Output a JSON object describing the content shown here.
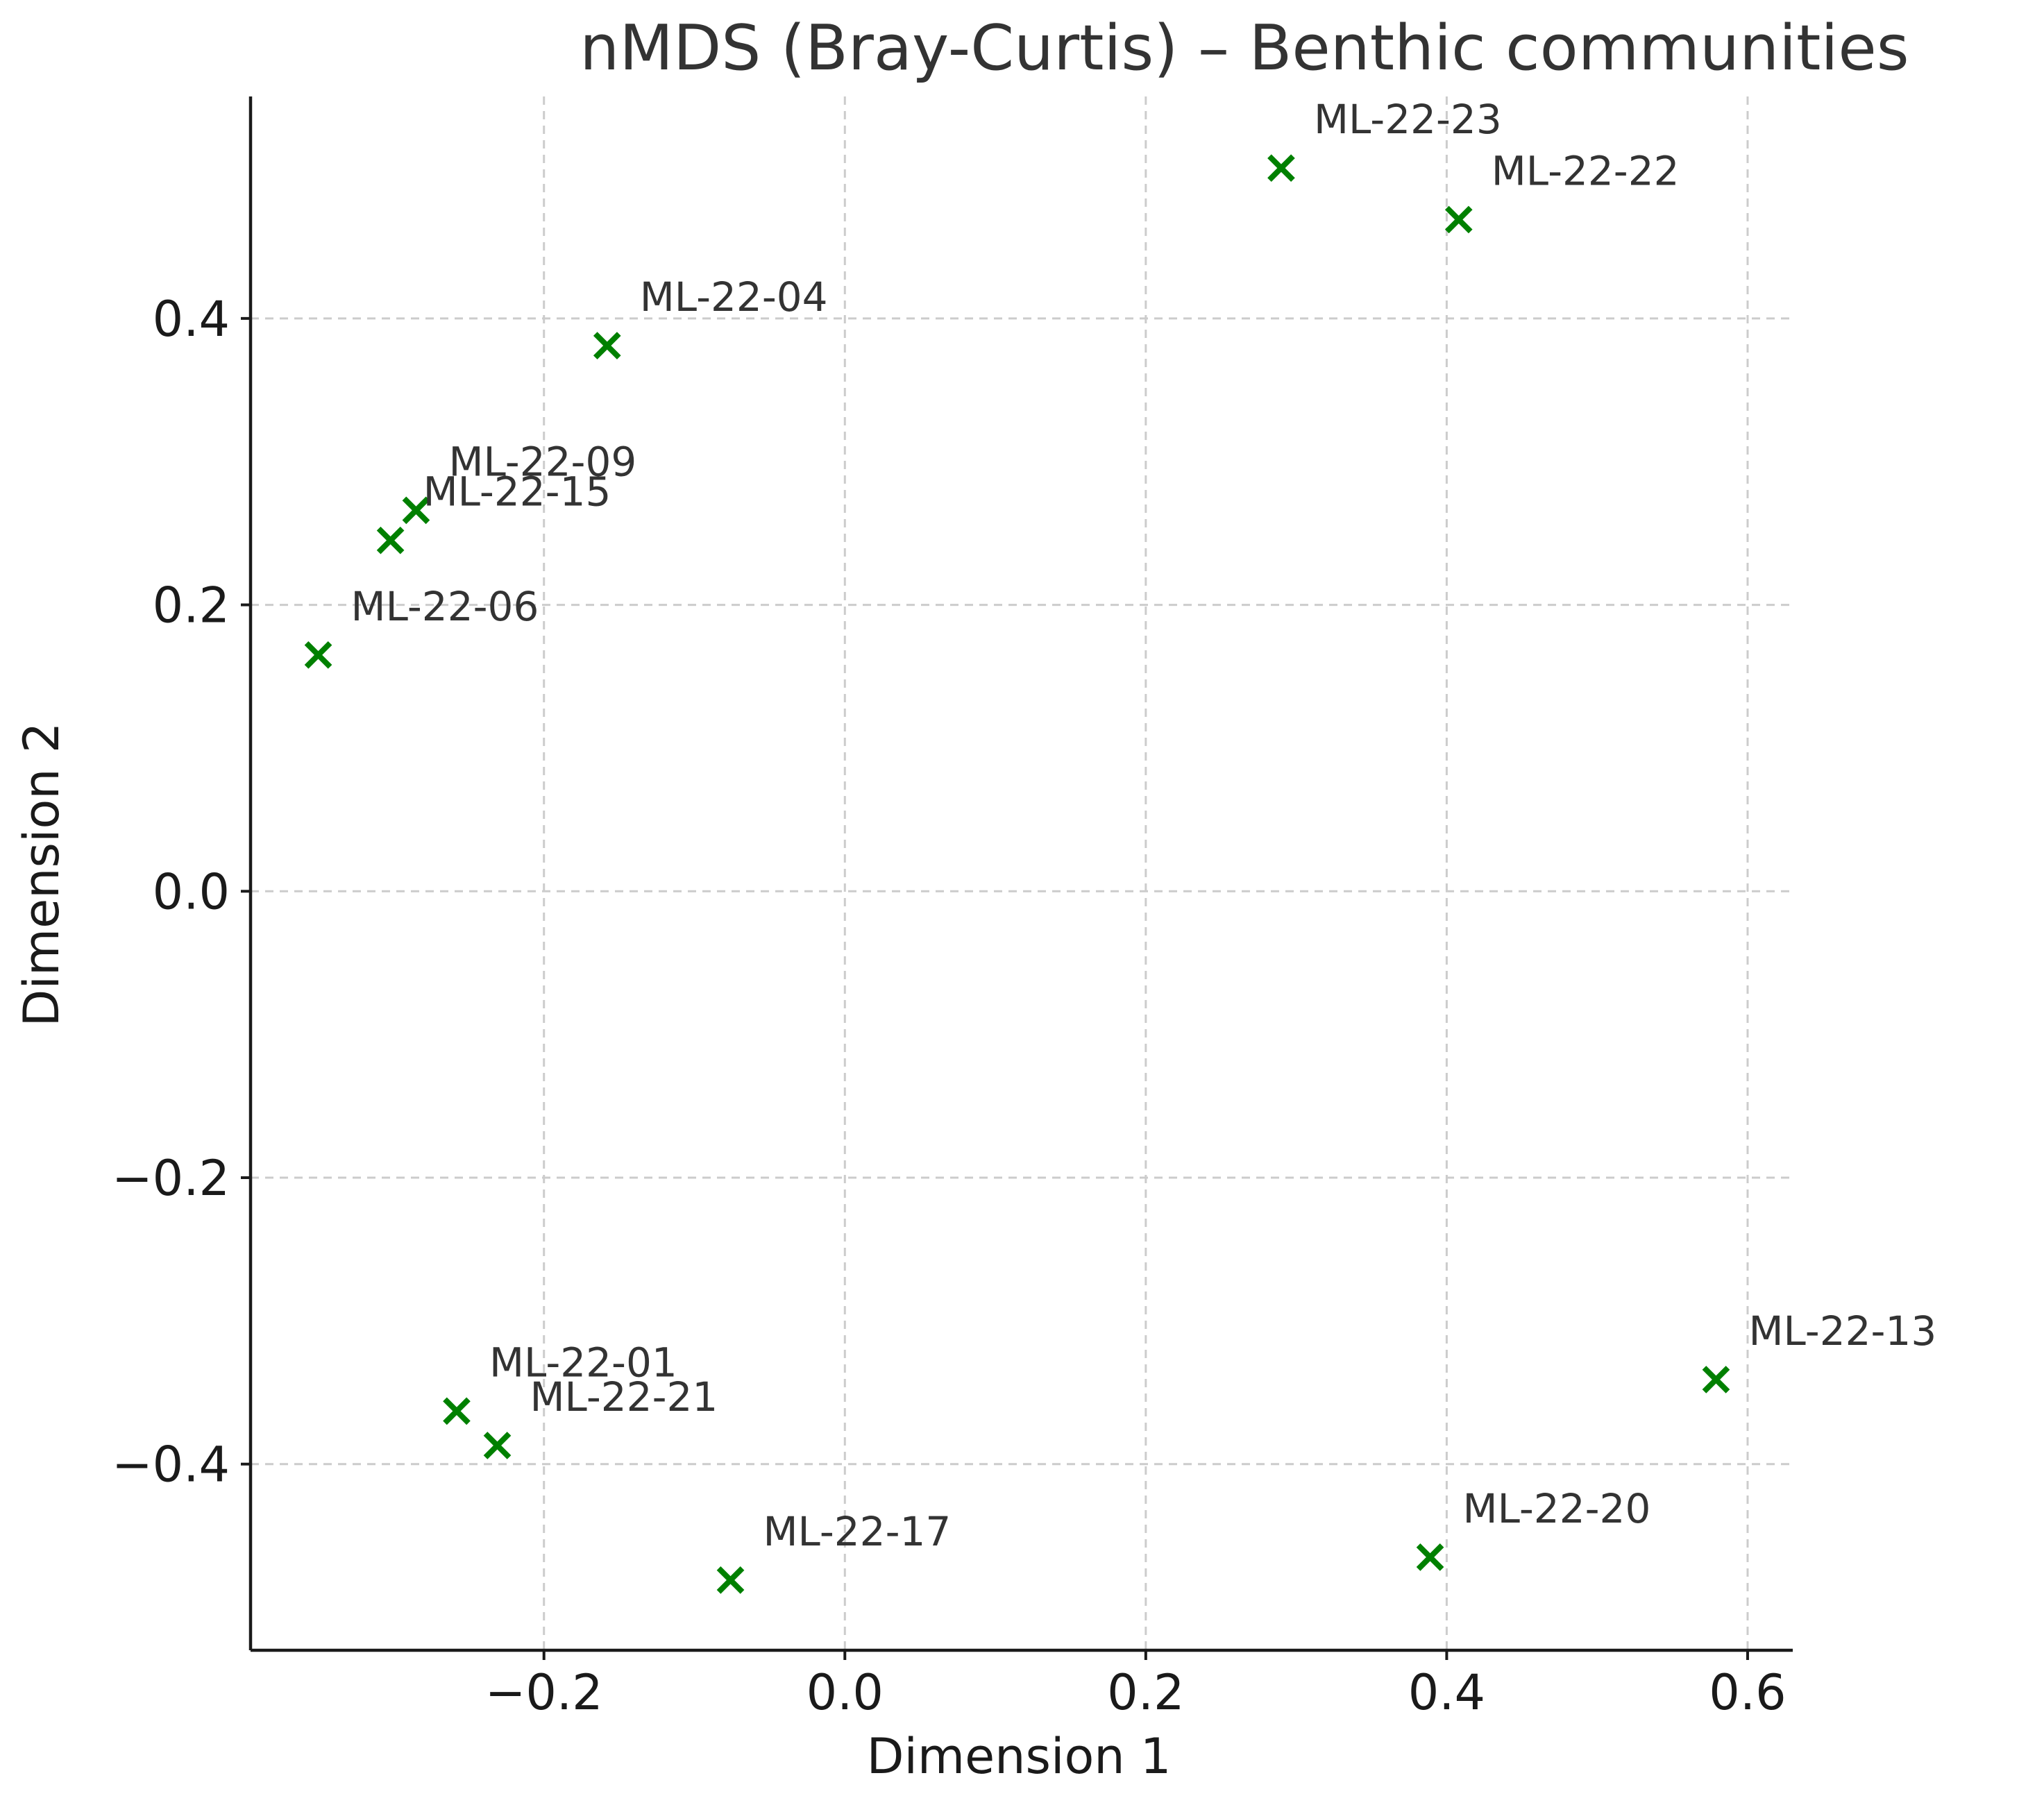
{
  "chart_data": {
    "type": "scatter",
    "title": "nMDS (Bray-Curtis) – Benthic communities",
    "xlabel": "Dimension 1",
    "ylabel": "Dimension 2",
    "xlim": [
      -0.395,
      0.63
    ],
    "ylim": [
      -0.53,
      0.555
    ],
    "xticks": [
      -0.2,
      0.0,
      0.2,
      0.4,
      0.6
    ],
    "yticks": [
      -0.4,
      -0.2,
      0.0,
      0.2,
      0.4
    ],
    "xtick_labels": [
      "−0.2",
      "0.0",
      "0.2",
      "0.4",
      "0.6"
    ],
    "ytick_labels": [
      "−0.4",
      "−0.2",
      "0.0",
      "0.2",
      "0.4"
    ],
    "grid": true,
    "marker": "x",
    "marker_color": "#008000",
    "points": [
      {
        "label": "ML-22-23",
        "x": 0.29,
        "y": 0.505
      },
      {
        "label": "ML-22-22",
        "x": 0.408,
        "y": 0.469
      },
      {
        "label": "ML-22-04",
        "x": -0.158,
        "y": 0.381
      },
      {
        "label": "ML-22-09",
        "x": -0.285,
        "y": 0.266
      },
      {
        "label": "ML-22-15",
        "x": -0.302,
        "y": 0.245
      },
      {
        "label": "ML-22-06",
        "x": -0.35,
        "y": 0.165
      },
      {
        "label": "ML-22-13",
        "x": 0.579,
        "y": -0.341
      },
      {
        "label": "ML-22-01",
        "x": -0.258,
        "y": -0.363
      },
      {
        "label": "ML-22-21",
        "x": -0.231,
        "y": -0.387
      },
      {
        "label": "ML-22-20",
        "x": 0.389,
        "y": -0.465
      },
      {
        "label": "ML-22-17",
        "x": -0.076,
        "y": -0.481
      }
    ]
  }
}
